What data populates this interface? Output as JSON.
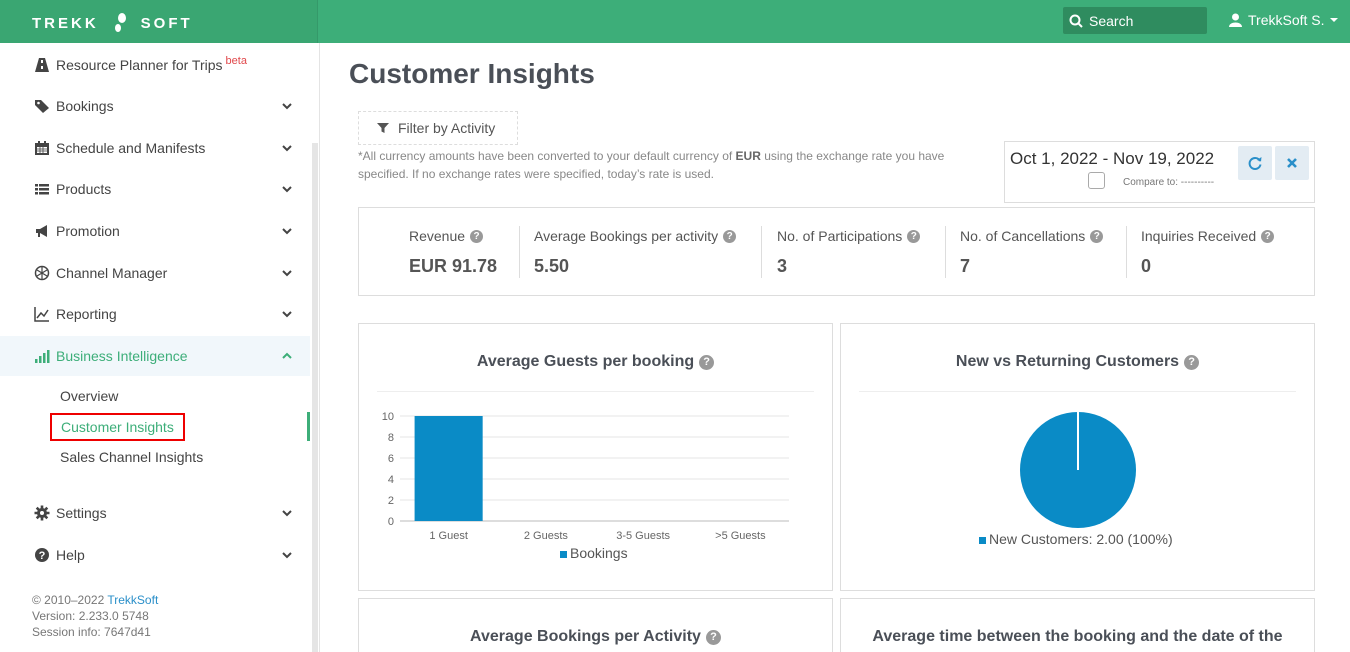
{
  "header": {
    "brand_left": "TREKK",
    "brand_right": "SOFT",
    "search_label": "Search",
    "user_label": "TrekkSoft S."
  },
  "sidebar": {
    "items": [
      {
        "label": "Resource Planner for Trips",
        "badge": "beta",
        "icon": "road-icon"
      },
      {
        "label": "Bookings",
        "icon": "tag-icon"
      },
      {
        "label": "Schedule and Manifests",
        "icon": "calendar-icon"
      },
      {
        "label": "Products",
        "icon": "list-icon"
      },
      {
        "label": "Promotion",
        "icon": "megaphone-icon"
      },
      {
        "label": "Channel Manager",
        "icon": "network-icon"
      },
      {
        "label": "Reporting",
        "icon": "line-chart-icon"
      },
      {
        "label": "Business Intelligence",
        "icon": "bar-chart-icon"
      },
      {
        "label": "Settings",
        "icon": "gear-icon"
      },
      {
        "label": "Help",
        "icon": "help-icon"
      }
    ],
    "subitems": [
      "Overview",
      "Customer Insights",
      "Sales Channel Insights"
    ],
    "footer": {
      "copyright": "© 2010–2022",
      "company": "TrekkSoft",
      "version": "Version: 2.233.0 5748",
      "session": "Session info: 7647d41"
    }
  },
  "main": {
    "title": "Customer Insights",
    "filter_label": "Filter by Activity",
    "note_pre": "*All currency amounts have been converted to your default currency of ",
    "note_currency": "EUR",
    "note_post": " using the exchange rate you have specified. If no exchange rates were specified, today’s rate is used.",
    "date_range": "Oct 1, 2022 - Nov 19, 2022",
    "compare_label": "Compare to: ----------",
    "stats": [
      {
        "label": "Revenue",
        "value": "EUR 91.78"
      },
      {
        "label": "Average Bookings per activity",
        "value": "5.50"
      },
      {
        "label": "No. of Participations",
        "value": "3"
      },
      {
        "label": "No. of Cancellations",
        "value": "7"
      },
      {
        "label": "Inquiries Received",
        "value": "0"
      }
    ],
    "cards": {
      "guests_title": "Average Guests per booking",
      "customers_title": "New vs Returning Customers",
      "bookings_activity_title": "Average Bookings per Activity",
      "avg_time_title": "Average time between the booking and the date of the"
    }
  },
  "chart_data": [
    {
      "type": "bar",
      "title": "Average Guests per booking",
      "categories": [
        "1 Guest",
        "2 Guests",
        "3-5 Guests",
        ">5 Guests"
      ],
      "series": [
        {
          "name": "Bookings",
          "values": [
            10,
            0,
            0,
            0
          ]
        }
      ],
      "ylim": [
        0,
        10
      ],
      "yticks": [
        0,
        2,
        4,
        6,
        8,
        10
      ],
      "legend": "bottom",
      "grid": true,
      "color": "#0a8bc6"
    },
    {
      "type": "pie",
      "title": "New vs Returning Customers",
      "slices": [
        {
          "label": "New Customers",
          "value": 2.0,
          "percent": 100,
          "display": "New Customers: 2.00 (100%)"
        }
      ],
      "legend": "bottom",
      "color": "#0a8bc6"
    }
  ]
}
